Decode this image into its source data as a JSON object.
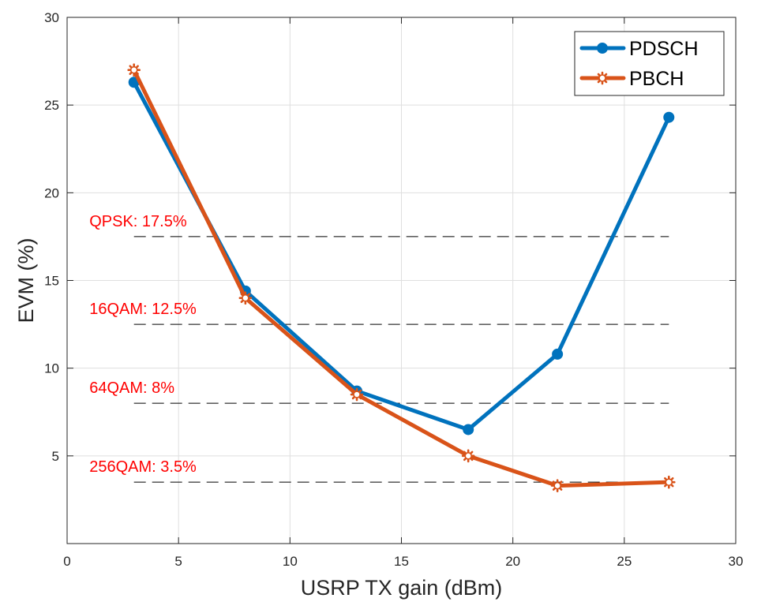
{
  "chart_data": {
    "type": "line",
    "title": "",
    "xlabel": "USRP TX gain (dBm)",
    "ylabel": "EVM (%)",
    "xlim": [
      0,
      30
    ],
    "ylim": [
      0,
      30
    ],
    "xticks": [
      0,
      5,
      10,
      15,
      20,
      25,
      30
    ],
    "yticks": [
      5,
      10,
      15,
      20,
      25,
      30
    ],
    "grid": true,
    "legend_position": "top-right",
    "series": [
      {
        "name": "PDSCH",
        "color": "#0072BD",
        "marker": "circle",
        "x": [
          3,
          8,
          13,
          18,
          22,
          27
        ],
        "y": [
          26.3,
          14.4,
          8.7,
          6.5,
          10.8,
          24.3
        ]
      },
      {
        "name": "PBCH",
        "color": "#D95319",
        "marker": "asterisk",
        "x": [
          3,
          8,
          13,
          18,
          22,
          27
        ],
        "y": [
          27.0,
          14.0,
          8.5,
          5.0,
          3.3,
          3.5
        ]
      }
    ],
    "thresholds": [
      {
        "label": "QPSK: 17.5%",
        "value": 17.5,
        "x_start": 3,
        "x_end": 27,
        "label_x": 1.0
      },
      {
        "label": "16QAM: 12.5%",
        "value": 12.5,
        "x_start": 3,
        "x_end": 27,
        "label_x": 1.0
      },
      {
        "label": "64QAM: 8%",
        "value": 8,
        "x_start": 3,
        "x_end": 27,
        "label_x": 1.0
      },
      {
        "label": "256QAM: 3.5%",
        "value": 3.5,
        "x_start": 3,
        "x_end": 27,
        "label_x": 1.0
      }
    ],
    "annotation_color": "#FF0000"
  }
}
